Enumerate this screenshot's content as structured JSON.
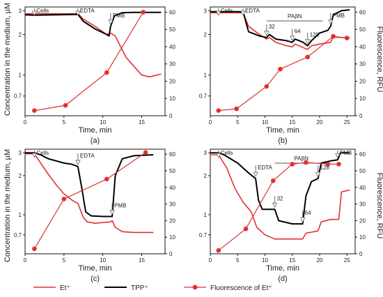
{
  "figure": {
    "shared_left_ylabel": "Concentration in the medium, µM",
    "shared_right_ylabel": "Fluorescence, RFU",
    "legend": [
      {
        "label": "Et⁺",
        "style": "line",
        "color": "#e03030"
      },
      {
        "label": "TPP⁺",
        "style": "line",
        "color": "#000000"
      },
      {
        "label": "Fluorescence of Et⁺",
        "style": "line-marker",
        "color": "#e03030"
      }
    ]
  },
  "chart_data": [
    {
      "panel": "(a)",
      "type": "line",
      "xlabel": "Time, min",
      "ylabel": "Concentration in the medium, µM",
      "y2label": "",
      "xlim": [
        0,
        18
      ],
      "x_ticks": [
        0,
        5,
        10,
        15
      ],
      "ylim": [
        0.5,
        3.2
      ],
      "y_scale": "log",
      "y_ticks": [
        0.7,
        1,
        2,
        3
      ],
      "y2lim": [
        0,
        63
      ],
      "y2_ticks": [
        0,
        10,
        20,
        30,
        40,
        50,
        60
      ],
      "annotations": [
        {
          "text": "Cells",
          "x": 1.2
        },
        {
          "text": "EDTA",
          "x": 6.8
        },
        {
          "text": "PMB",
          "x": 11.0
        }
      ],
      "bars": [],
      "series": [
        {
          "name": "Et⁺",
          "color": "#e03030",
          "axis": "left",
          "marker": false,
          "x": [
            0,
            1.2,
            4,
            6.8,
            7.5,
            9,
            10.5,
            11,
            11.6,
            13,
            15,
            16,
            17.5
          ],
          "y": [
            2.85,
            2.85,
            2.85,
            2.85,
            2.6,
            2.3,
            2.0,
            2.05,
            1.95,
            1.35,
            1.0,
            0.97,
            1.02
          ]
        },
        {
          "name": "TPP⁺",
          "color": "#000000",
          "axis": "left",
          "marker": false,
          "x": [
            0,
            1.2,
            4,
            6.8,
            7.5,
            9,
            10.5,
            10.8,
            11,
            11.5,
            12.5,
            14,
            17.5
          ],
          "y": [
            2.8,
            2.78,
            2.8,
            2.82,
            2.5,
            2.2,
            2.0,
            1.95,
            2.3,
            2.75,
            2.9,
            2.92,
            2.92
          ]
        },
        {
          "name": "Fluorescence of Et⁺",
          "color": "#e03030",
          "axis": "right",
          "marker": true,
          "x": [
            1.2,
            5.2,
            10.5,
            15.2
          ],
          "y": [
            3,
            6,
            25,
            60
          ]
        }
      ]
    },
    {
      "panel": "(b)",
      "type": "line",
      "xlabel": "Time, min",
      "ylabel": "",
      "y2label": "Fluorescence, RFU",
      "xlim": [
        0,
        26.5
      ],
      "x_ticks": [
        0,
        5,
        10,
        15,
        20,
        25
      ],
      "ylim": [
        0.5,
        3.2
      ],
      "y_scale": "log",
      "y_ticks": [
        0.7,
        1,
        2,
        3
      ],
      "y2lim": [
        0,
        63
      ],
      "y2_ticks": [
        0,
        10,
        20,
        30,
        40,
        50,
        60
      ],
      "annotations": [
        {
          "text": "Cells",
          "x": 1.5
        },
        {
          "text": "EDTA",
          "x": 6.0
        },
        {
          "text": "32",
          "x": 10.3
        },
        {
          "text": "64",
          "x": 15.0
        },
        {
          "text": "128",
          "x": 17.8
        },
        {
          "text": "PMB",
          "x": 22.0
        }
      ],
      "bars": [
        {
          "text": "PAβN",
          "x1": 10.3,
          "x2": 20.6
        }
      ],
      "series": [
        {
          "name": "Et⁺",
          "color": "#e03030",
          "axis": "left",
          "marker": false,
          "x": [
            0,
            1.5,
            4,
            6.0,
            7,
            9,
            10.3,
            10.8,
            12,
            14,
            15,
            15.5,
            17,
            17.8,
            18.5,
            20,
            22,
            22.5,
            24,
            25.5
          ],
          "y": [
            2.9,
            2.9,
            2.9,
            2.9,
            2.3,
            2.0,
            1.85,
            1.9,
            1.75,
            1.65,
            1.62,
            1.7,
            1.6,
            1.55,
            1.65,
            1.7,
            1.75,
            1.92,
            1.9,
            1.9
          ]
        },
        {
          "name": "TPP⁺",
          "color": "#000000",
          "axis": "left",
          "marker": false,
          "x": [
            0,
            1.5,
            4,
            6.0,
            7,
            9,
            10.3,
            10.8,
            12,
            14,
            15,
            15.5,
            17,
            17.8,
            18.5,
            20,
            21.5,
            22,
            22.5,
            24,
            25.5
          ],
          "y": [
            2.95,
            2.95,
            2.95,
            2.95,
            2.1,
            1.95,
            1.9,
            2.0,
            1.85,
            1.8,
            1.75,
            1.85,
            1.75,
            1.65,
            1.8,
            2.05,
            2.15,
            2.3,
            2.8,
            3.0,
            3.05
          ]
        },
        {
          "name": "Fluorescence of Et⁺",
          "color": "#e03030",
          "axis": "right",
          "marker": true,
          "x": [
            1.5,
            4.8,
            10.3,
            12.8,
            17.8,
            22.5,
            25.0
          ],
          "y": [
            3,
            4,
            17,
            27,
            34,
            46,
            45
          ]
        }
      ]
    },
    {
      "panel": "(c)",
      "type": "line",
      "xlabel": "Time, min",
      "ylabel": "Concentration in the medium, µM",
      "y2label": "",
      "xlim": [
        0,
        18
      ],
      "x_ticks": [
        0,
        5,
        10,
        15
      ],
      "ylim": [
        0.5,
        3.2
      ],
      "y_scale": "log",
      "y_ticks": [
        0.7,
        1,
        2,
        3
      ],
      "y2lim": [
        0,
        63
      ],
      "y2_ticks": [
        0,
        10,
        20,
        30,
        40,
        50,
        60
      ],
      "annotations": [
        {
          "text": "Cells",
          "x": 1.2
        },
        {
          "text": "EDTA",
          "x": 6.8
        },
        {
          "text": "PMB",
          "x": 11.2
        }
      ],
      "bars": [],
      "series": [
        {
          "name": "Et⁺",
          "color": "#e03030",
          "axis": "left",
          "marker": false,
          "x": [
            0,
            1.2,
            2,
            3,
            4,
            5,
            6,
            6.8,
            7.5,
            8,
            9,
            10,
            11,
            11.2,
            11.6,
            12.5,
            14,
            16.5
          ],
          "y": [
            2.95,
            2.95,
            2.5,
            2.05,
            1.7,
            1.45,
            1.3,
            1.22,
            0.95,
            0.88,
            0.86,
            0.87,
            0.88,
            0.9,
            0.8,
            0.74,
            0.73,
            0.73
          ]
        },
        {
          "name": "TPP⁺",
          "color": "#000000",
          "axis": "left",
          "marker": false,
          "x": [
            0,
            1.2,
            2,
            3,
            5,
            6,
            6.8,
            7.3,
            7.8,
            8.5,
            10,
            11.2,
            11.6,
            12.5,
            14,
            16.5
          ],
          "y": [
            3.0,
            3.0,
            2.9,
            2.7,
            2.5,
            2.45,
            2.35,
            1.6,
            1.05,
            0.98,
            0.97,
            0.97,
            2.0,
            2.7,
            2.85,
            2.9
          ]
        },
        {
          "name": "Fluorescence of Et⁺",
          "color": "#e03030",
          "axis": "right",
          "marker": true,
          "x": [
            1.2,
            5.0,
            10.5,
            15.5
          ],
          "y": [
            3,
            33,
            45,
            61
          ]
        }
      ]
    },
    {
      "panel": "(d)",
      "type": "line",
      "xlabel": "Time, min",
      "ylabel": "",
      "y2label": "Fluorescence, RFU",
      "xlim": [
        0,
        26.5
      ],
      "x_ticks": [
        0,
        5,
        10,
        15,
        20,
        25
      ],
      "ylim": [
        0.5,
        3.2
      ],
      "y_scale": "log",
      "y_ticks": [
        0.7,
        1,
        2,
        3
      ],
      "y2lim": [
        0,
        63
      ],
      "y2_ticks": [
        0,
        10,
        20,
        30,
        40,
        50,
        60
      ],
      "annotations": [
        {
          "text": "Cells",
          "x": 1.5
        },
        {
          "text": "EDTA",
          "x": 8.3
        },
        {
          "text": "32",
          "x": 11.8
        },
        {
          "text": "64",
          "x": 16.9
        },
        {
          "text": "128",
          "x": 19.7
        },
        {
          "text": "PMB",
          "x": 23.3
        }
      ],
      "bars": [
        {
          "text": "PAβN",
          "x1": 11.8,
          "x2": 21.5
        }
      ],
      "series": [
        {
          "name": "Et⁺",
          "color": "#e03030",
          "axis": "left",
          "marker": false,
          "x": [
            0,
            1.5,
            3,
            4.5,
            6,
            7.5,
            8.5,
            10,
            11.8,
            12.5,
            15,
            16.9,
            17.5,
            19.7,
            20.3,
            22,
            23.5,
            24,
            25.5
          ],
          "y": [
            2.9,
            2.9,
            2.3,
            1.6,
            1.25,
            1.05,
            0.8,
            0.7,
            0.65,
            0.65,
            0.65,
            0.65,
            0.72,
            0.75,
            0.88,
            0.92,
            0.92,
            1.5,
            1.55
          ]
        },
        {
          "name": "TPP⁺",
          "color": "#000000",
          "axis": "left",
          "marker": false,
          "x": [
            0,
            1.5,
            2.5,
            5,
            7,
            8.3,
            8.8,
            9.5,
            11.8,
            12.5,
            15,
            16.9,
            17.5,
            18.5,
            19.7,
            20.3,
            22,
            23.3,
            23.8,
            25.5
          ],
          "y": [
            3.0,
            3.0,
            2.9,
            2.5,
            2.1,
            1.9,
            1.3,
            1.1,
            1.1,
            0.9,
            0.85,
            0.85,
            1.4,
            1.8,
            1.9,
            2.5,
            2.6,
            2.65,
            3.0,
            3.0
          ]
        },
        {
          "name": "Fluorescence of Et⁺",
          "color": "#e03030",
          "axis": "right",
          "marker": true,
          "x": [
            1.5,
            6.5,
            11.5,
            15.0,
            17.5,
            21.5,
            23.5
          ],
          "y": [
            2,
            15,
            44,
            54,
            55,
            54,
            54
          ]
        }
      ]
    }
  ]
}
